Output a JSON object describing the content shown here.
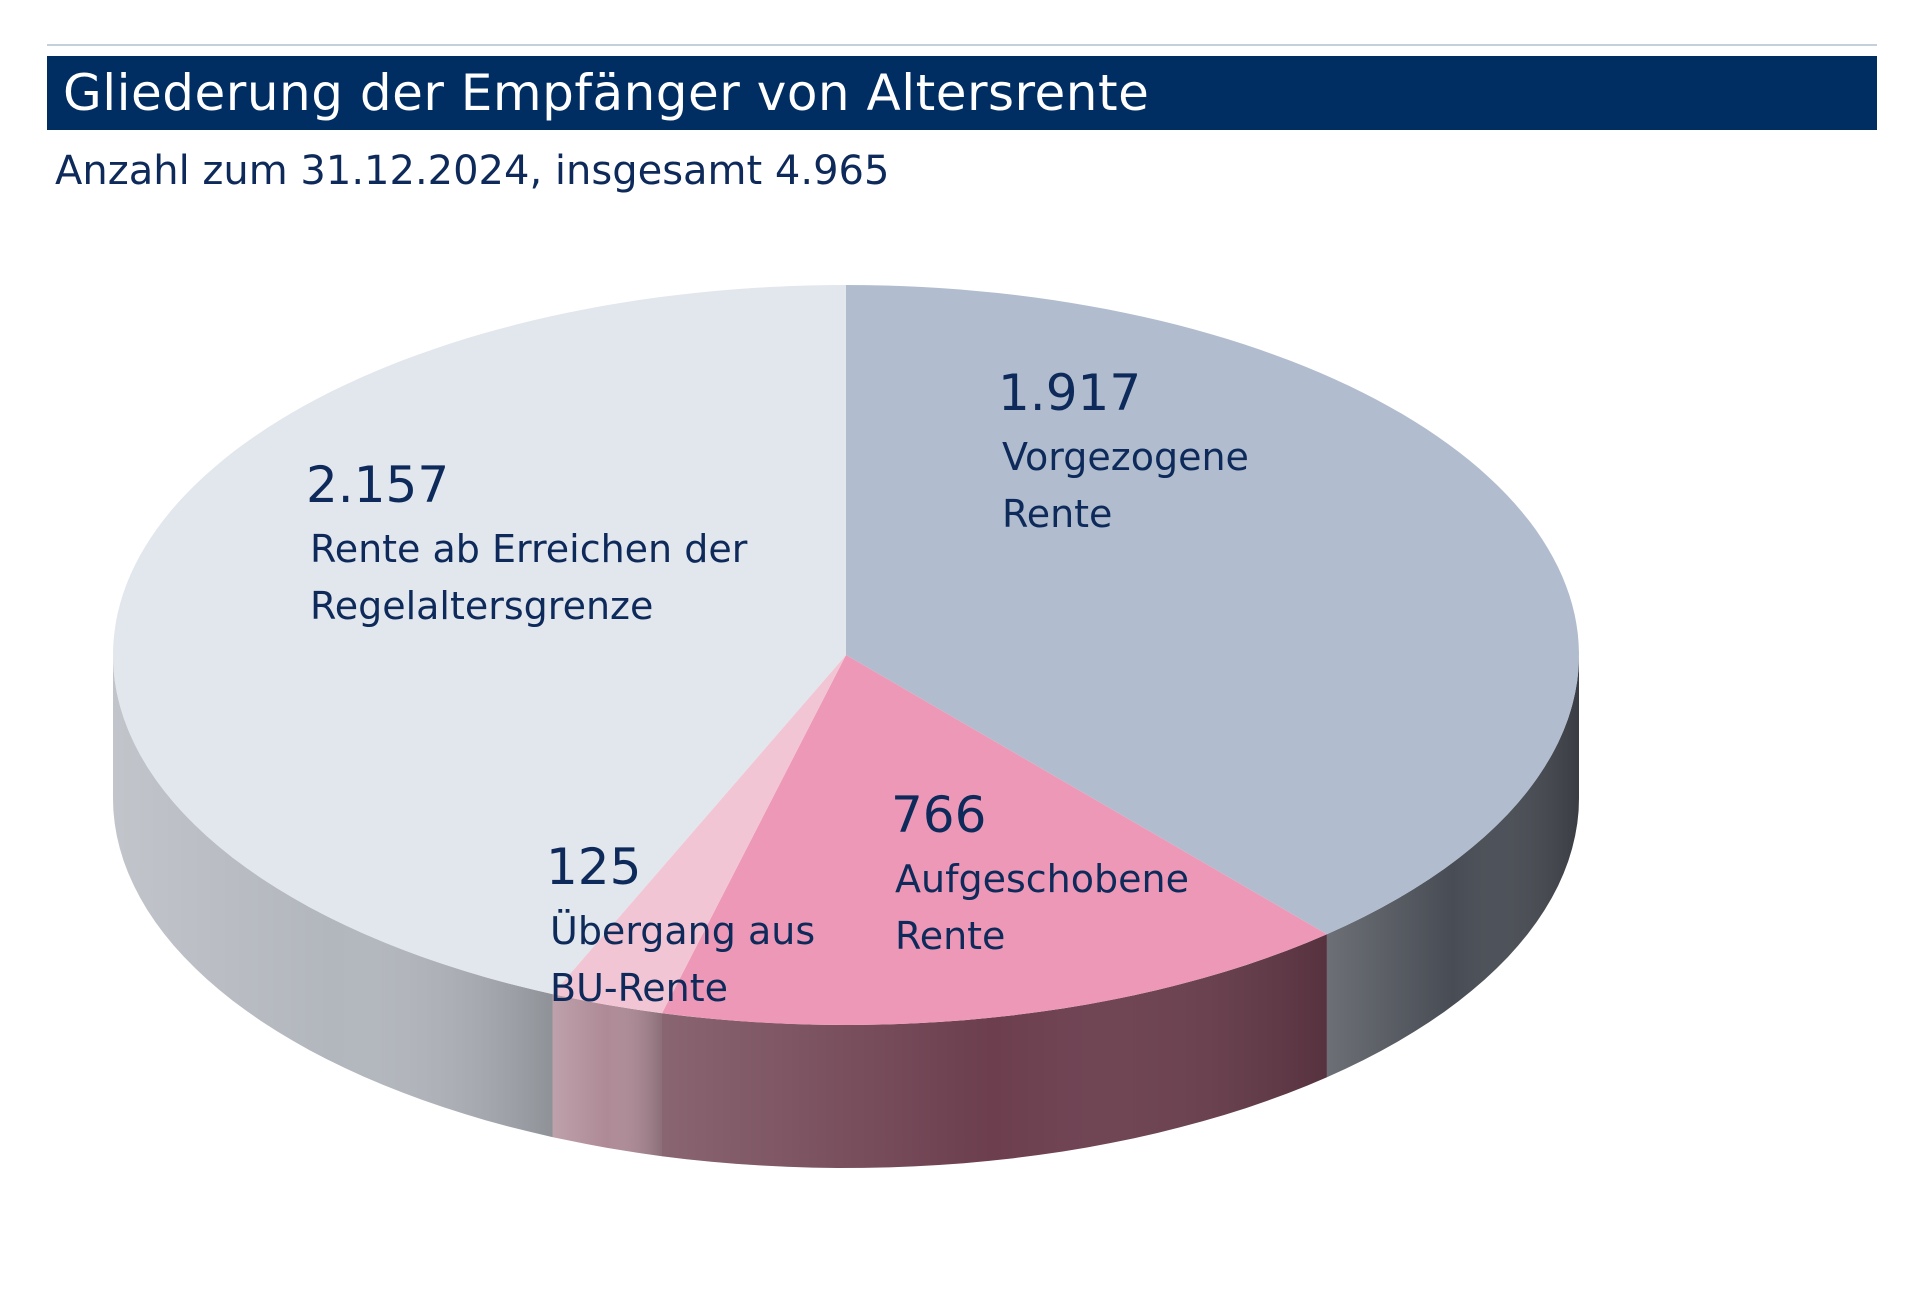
{
  "chart_data": {
    "type": "pie",
    "title": "Gliederung der Empfänger von Altersrente",
    "subtitle": "Anzahl zum 31.12.2024, insgesamt 4.965",
    "total": 4965,
    "slices": [
      {
        "value": 1917,
        "value_label": "1.917",
        "label_lines": [
          "Vorgezogene",
          "Rente"
        ],
        "color_top": "#b1bdce",
        "color_side": "#484c54"
      },
      {
        "value": 766,
        "value_label": "766",
        "label_lines": [
          "Aufgeschobene",
          "Rente"
        ],
        "color_top": "#ed98b6",
        "color_side": "#6c3e4e"
      },
      {
        "value": 125,
        "value_label": "125",
        "label_lines": [
          "Übergang aus",
          "BU-Rente"
        ],
        "color_top": "#f2c5d4",
        "color_side": "#ae8a96"
      },
      {
        "value": 2157,
        "value_label": "2.157",
        "label_lines": [
          "Rente ab Erreichen der",
          "Regelaltersgrenze"
        ],
        "color_top": "#e2e6ed",
        "color_side": "#b2b6bd"
      }
    ]
  }
}
